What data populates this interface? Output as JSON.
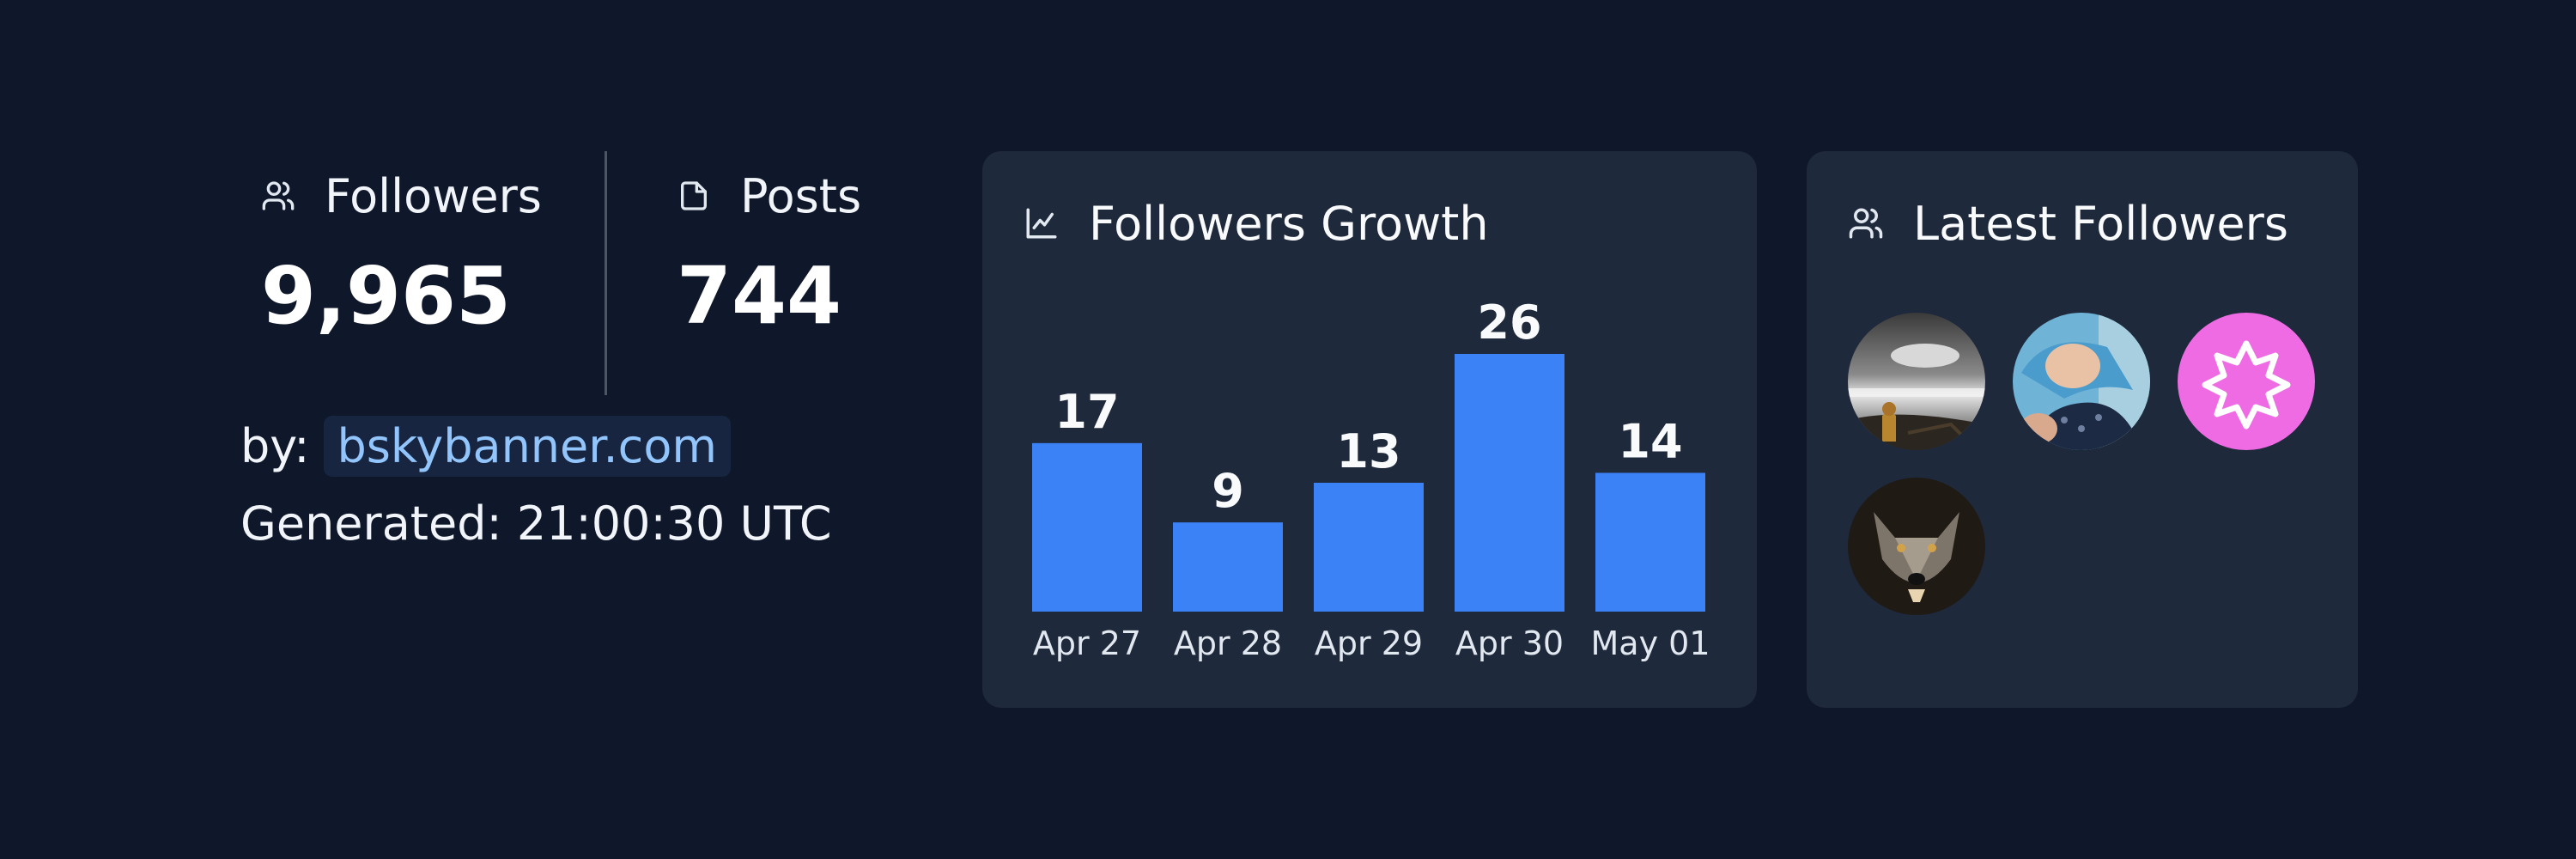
{
  "stats": {
    "followers": {
      "label": "Followers",
      "value": "9,965",
      "icon": "users-icon"
    },
    "posts": {
      "label": "Posts",
      "value": "744",
      "icon": "document-icon"
    }
  },
  "byline": {
    "prefix": "by:",
    "link": "bskybanner.com"
  },
  "generated": "Generated: 21:00:30 UTC",
  "growth_card": {
    "title": "Followers Growth",
    "icon": "line-chart-icon"
  },
  "latest_card": {
    "title": "Latest Followers",
    "icon": "users-icon"
  },
  "chart_data": {
    "type": "bar",
    "categories": [
      "Apr 27",
      "Apr 28",
      "Apr 29",
      "Apr 30",
      "May 01"
    ],
    "values": [
      17,
      9,
      13,
      26,
      14
    ],
    "title": "Followers Growth",
    "xlabel": "",
    "ylabel": "",
    "ylim": [
      0,
      26
    ],
    "grid": false,
    "bar_color": "#3b82f6"
  },
  "latest_followers": [
    {
      "name": "follower-avatar-1",
      "kind": "photo-moonlit-sea"
    },
    {
      "name": "follower-avatar-2",
      "kind": "photo-baby"
    },
    {
      "name": "follower-avatar-3",
      "kind": "badge-star",
      "color": "#ee6be3"
    },
    {
      "name": "follower-avatar-4",
      "kind": "photo-wolf"
    }
  ],
  "colors": {
    "background": "#0f172a",
    "card": "#1e293b",
    "accent": "#3b82f6",
    "link": "#93c5fd"
  }
}
